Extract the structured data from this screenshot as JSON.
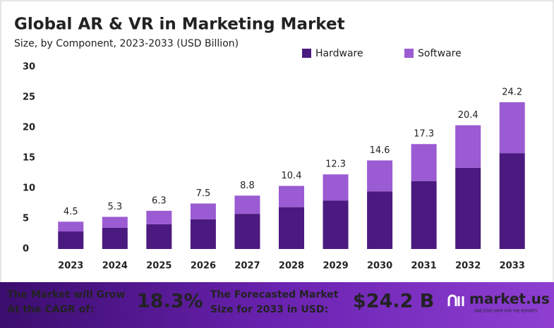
{
  "chart_data": {
    "type": "stacked-bar",
    "title": "Global AR & VR in Marketing Market",
    "subtitle": "Size, by Component, 2023-2033 (USD Billion)",
    "categories": [
      "2023",
      "2024",
      "2025",
      "2026",
      "2027",
      "2028",
      "2029",
      "2030",
      "2031",
      "2032",
      "2033"
    ],
    "series": [
      {
        "name": "Hardware",
        "color": "#4b1a80",
        "values": [
          2.9,
          3.5,
          4.1,
          4.9,
          5.8,
          6.9,
          8.0,
          9.5,
          11.2,
          13.4,
          15.8
        ]
      },
      {
        "name": "Software",
        "color": "#9b5bd3",
        "values": [
          1.6,
          1.8,
          2.2,
          2.6,
          3.0,
          3.5,
          4.3,
          5.1,
          6.1,
          7.0,
          8.4
        ]
      }
    ],
    "totals": [
      4.5,
      5.3,
      6.3,
      7.5,
      8.8,
      10.4,
      12.3,
      14.6,
      17.3,
      20.4,
      24.2
    ],
    "ylim": [
      0,
      30
    ],
    "yticks": [
      0,
      5,
      10,
      15,
      20,
      25,
      30
    ],
    "grid": false,
    "legend": "top-right"
  },
  "footer": {
    "cagr_text": [
      "The Market will Grow",
      "At the CAGR of:"
    ],
    "cagr": "18.3%",
    "forecast_text": [
      "The Forecasted Market",
      "Size for 2033 in USD:"
    ],
    "forecast": "$24.2 B",
    "brand": "market.us",
    "tagline": "ONE STOP SHOP FOR THE REPORTS"
  }
}
